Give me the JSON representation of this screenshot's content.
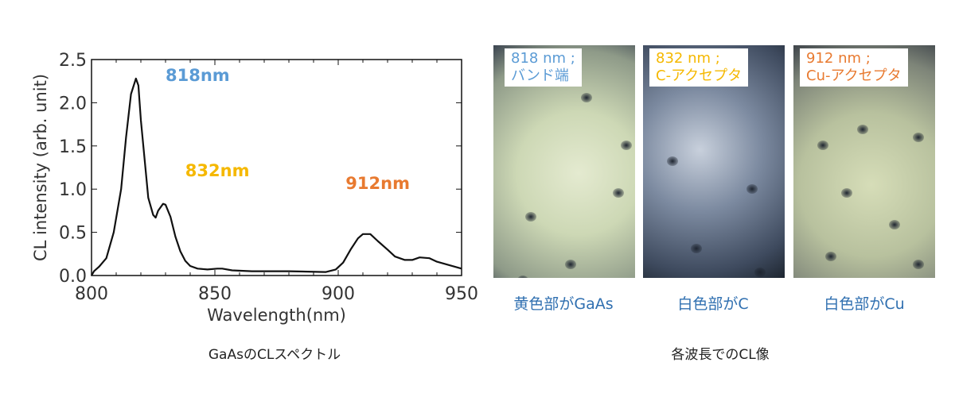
{
  "chart_data": {
    "type": "line",
    "xlabel": "Wavelength(nm)",
    "ylabel": "CL intensity (arb. unit)",
    "xlim": [
      800,
      950
    ],
    "ylim": [
      0,
      2.5
    ],
    "xticks": [
      "800",
      "850",
      "900",
      "950"
    ],
    "yticks": [
      "0.0",
      "0.5",
      "1.0",
      "1.5",
      "2.0",
      "2.5"
    ],
    "grid": false,
    "annotations": [
      {
        "text": "818nm",
        "x": 830,
        "y": 2.25,
        "color": "#5b9bd5"
      },
      {
        "text": "832nm",
        "x": 838,
        "y": 1.15,
        "color": "#f5b800"
      },
      {
        "text": "912nm",
        "x": 903,
        "y": 1.0,
        "color": "#e87a30"
      }
    ],
    "series": [
      {
        "x": [
          800,
          801,
          803,
          806,
          809,
          812,
          814,
          816,
          818,
          819,
          820,
          822,
          823,
          825,
          826,
          827,
          829,
          830,
          832,
          834,
          836,
          838,
          840,
          843,
          847,
          851,
          853,
          857,
          865,
          880,
          895,
          899,
          902,
          905,
          908,
          910,
          913,
          916,
          920,
          923,
          927,
          930,
          933,
          937,
          940,
          945,
          950
        ],
        "y": [
          0,
          0.05,
          0.1,
          0.2,
          0.5,
          1.0,
          1.6,
          2.1,
          2.28,
          2.2,
          1.8,
          1.2,
          0.9,
          0.7,
          0.67,
          0.75,
          0.83,
          0.82,
          0.68,
          0.45,
          0.28,
          0.17,
          0.11,
          0.08,
          0.07,
          0.08,
          0.08,
          0.06,
          0.05,
          0.05,
          0.04,
          0.07,
          0.15,
          0.3,
          0.43,
          0.48,
          0.48,
          0.4,
          0.3,
          0.22,
          0.18,
          0.18,
          0.21,
          0.2,
          0.16,
          0.12,
          0.08
        ]
      }
    ]
  },
  "chart_caption": "GaAsのCLスペクトル",
  "images_caption": "各波長でのCL像",
  "panels": [
    {
      "line1": "818 nm ;",
      "line2": "バンド端",
      "color": "#5b9bd5",
      "caption": "黄色部がGaAs"
    },
    {
      "line1": "832 nm ;",
      "line2": "C-アクセプタ",
      "color": "#f5b800",
      "caption": "白色部がC"
    },
    {
      "line1": "912 nm ;",
      "line2": "Cu-アクセプタ",
      "color": "#e87a30",
      "caption": "白色部がCu"
    }
  ]
}
